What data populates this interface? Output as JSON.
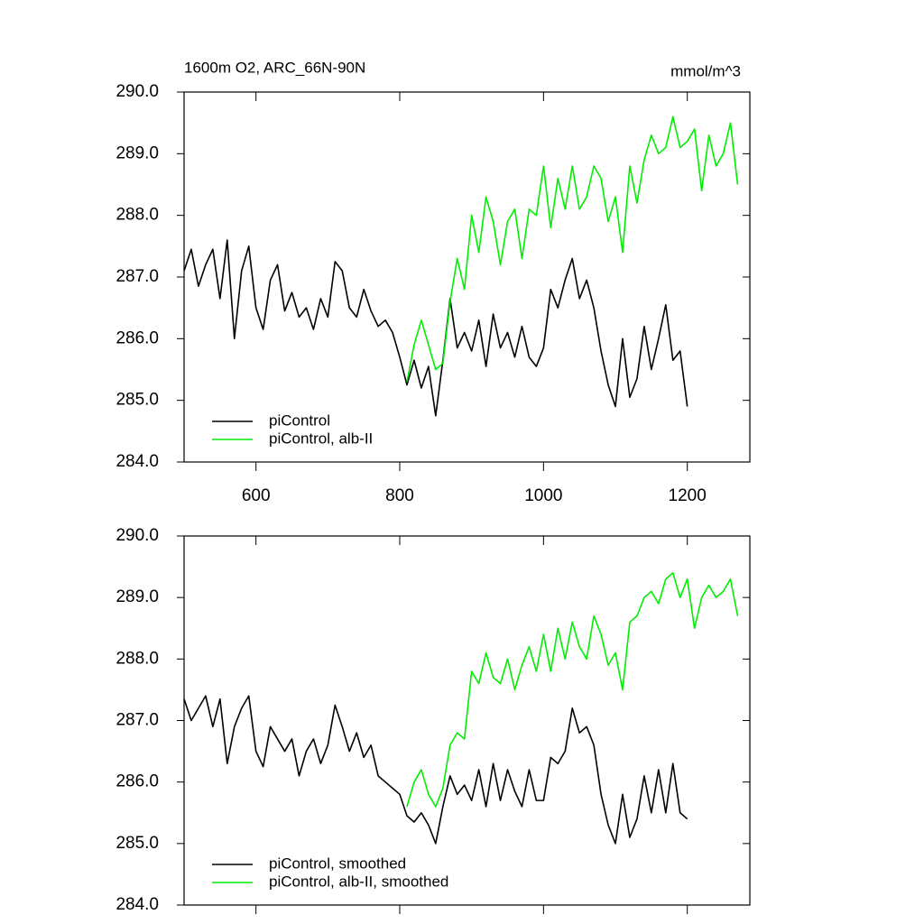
{
  "chart_data": [
    {
      "type": "line",
      "title": "1600m O2, ARC_66N-90N",
      "units": "mmol/m^3",
      "xlim": [
        500,
        1287
      ],
      "xticks": [
        600,
        800,
        1000,
        1200
      ],
      "ylim": [
        284,
        290
      ],
      "yticks": [
        {
          "value": 284,
          "label": "284.0"
        },
        {
          "value": 285,
          "label": "285.0"
        },
        {
          "value": 286,
          "label": "286.0"
        },
        {
          "value": 287,
          "label": "287.0"
        },
        {
          "value": 288,
          "label": "288.0"
        },
        {
          "value": 289,
          "label": "289.0"
        },
        {
          "value": 290,
          "label": "290.0"
        }
      ],
      "legend": "bottom-left",
      "series": [
        {
          "name": "piControl",
          "color": "#000000",
          "x": [
            500,
            510,
            520,
            530,
            540,
            550,
            560,
            570,
            580,
            590,
            600,
            610,
            620,
            630,
            640,
            650,
            660,
            670,
            680,
            690,
            700,
            710,
            720,
            730,
            740,
            750,
            760,
            770,
            780,
            790,
            800,
            810,
            820,
            830,
            840,
            850,
            860,
            870,
            880,
            890,
            900,
            910,
            920,
            930,
            940,
            950,
            960,
            970,
            980,
            990,
            1000,
            1010,
            1020,
            1030,
            1040,
            1050,
            1060,
            1070,
            1080,
            1090,
            1100,
            1110,
            1120,
            1130,
            1140,
            1150,
            1160,
            1170,
            1180,
            1190,
            1200
          ],
          "values": [
            287.1,
            287.45,
            286.85,
            287.2,
            287.45,
            286.65,
            287.6,
            286.0,
            287.1,
            287.5,
            286.5,
            286.15,
            286.95,
            287.2,
            286.45,
            286.75,
            286.35,
            286.5,
            286.15,
            286.65,
            286.35,
            287.25,
            287.1,
            286.5,
            286.35,
            286.8,
            286.45,
            286.2,
            286.3,
            286.1,
            285.7,
            285.25,
            285.65,
            285.2,
            285.55,
            284.75,
            285.65,
            286.65,
            285.85,
            286.1,
            285.8,
            286.3,
            285.55,
            286.4,
            285.85,
            286.1,
            285.7,
            286.2,
            285.7,
            285.55,
            285.85,
            286.8,
            286.5,
            286.95,
            287.3,
            286.65,
            286.95,
            286.5,
            285.8,
            285.25,
            284.9,
            286.0,
            285.05,
            285.35,
            286.2,
            285.5,
            286.0,
            286.55,
            285.65,
            285.8,
            284.9
          ]
        },
        {
          "name": "piControl, alb-II",
          "color": "#00ee00",
          "x": [
            810,
            820,
            830,
            840,
            850,
            860,
            870,
            880,
            890,
            900,
            910,
            920,
            930,
            940,
            950,
            960,
            970,
            980,
            990,
            1000,
            1010,
            1020,
            1030,
            1040,
            1050,
            1060,
            1070,
            1080,
            1090,
            1100,
            1110,
            1120,
            1130,
            1140,
            1150,
            1160,
            1170,
            1180,
            1190,
            1200,
            1210,
            1220,
            1230,
            1240,
            1250,
            1260,
            1270
          ],
          "values": [
            285.3,
            285.9,
            286.3,
            285.9,
            285.5,
            285.6,
            286.6,
            287.3,
            286.8,
            288.0,
            287.4,
            288.3,
            287.9,
            287.2,
            287.9,
            288.1,
            287.3,
            288.1,
            288.0,
            288.8,
            287.8,
            288.6,
            288.1,
            288.8,
            288.1,
            288.3,
            288.8,
            288.6,
            287.9,
            288.3,
            287.4,
            288.8,
            288.2,
            288.9,
            289.3,
            289.0,
            289.1,
            289.6,
            289.1,
            289.2,
            289.4,
            288.4,
            289.3,
            288.8,
            289.0,
            289.5,
            288.5
          ]
        }
      ]
    },
    {
      "type": "line",
      "xlim": [
        500,
        1287
      ],
      "xticks": [
        600,
        800,
        1000,
        1200
      ],
      "xticklabels": false,
      "ylim": [
        284,
        290
      ],
      "yticks": [
        {
          "value": 284,
          "label": "284.0"
        },
        {
          "value": 285,
          "label": "285.0"
        },
        {
          "value": 286,
          "label": "286.0"
        },
        {
          "value": 287,
          "label": "287.0"
        },
        {
          "value": 288,
          "label": "288.0"
        },
        {
          "value": 289,
          "label": "289.0"
        },
        {
          "value": 290,
          "label": "290.0"
        }
      ],
      "legend": "bottom-left",
      "series": [
        {
          "name": "piControl, smoothed",
          "color": "#000000",
          "x": [
            500,
            510,
            520,
            530,
            540,
            550,
            560,
            570,
            580,
            590,
            600,
            610,
            620,
            630,
            640,
            650,
            660,
            670,
            680,
            690,
            700,
            710,
            720,
            730,
            740,
            750,
            760,
            770,
            780,
            790,
            800,
            810,
            820,
            830,
            840,
            850,
            860,
            870,
            880,
            890,
            900,
            910,
            920,
            930,
            940,
            950,
            960,
            970,
            980,
            990,
            1000,
            1010,
            1020,
            1030,
            1040,
            1050,
            1060,
            1070,
            1080,
            1090,
            1100,
            1110,
            1120,
            1130,
            1140,
            1150,
            1160,
            1170,
            1180,
            1190,
            1200
          ],
          "values": [
            287.35,
            287.0,
            287.2,
            287.4,
            286.9,
            287.35,
            286.3,
            286.9,
            287.2,
            287.4,
            286.5,
            286.25,
            286.9,
            286.7,
            286.5,
            286.7,
            286.1,
            286.5,
            286.7,
            286.3,
            286.6,
            287.25,
            286.9,
            286.5,
            286.8,
            286.4,
            286.6,
            286.1,
            286.0,
            285.9,
            285.8,
            285.45,
            285.35,
            285.5,
            285.3,
            285.0,
            285.6,
            286.1,
            285.8,
            285.95,
            285.7,
            286.2,
            285.6,
            286.3,
            285.7,
            286.2,
            285.85,
            285.6,
            286.2,
            285.7,
            285.7,
            286.4,
            286.3,
            286.5,
            287.2,
            286.8,
            286.9,
            286.6,
            285.8,
            285.3,
            285.0,
            285.8,
            285.1,
            285.4,
            286.1,
            285.5,
            286.2,
            285.5,
            286.3,
            285.5,
            285.4
          ]
        },
        {
          "name": "piControl, alb-II, smoothed",
          "color": "#00ee00",
          "x": [
            810,
            820,
            830,
            840,
            850,
            860,
            870,
            880,
            890,
            900,
            910,
            920,
            930,
            940,
            950,
            960,
            970,
            980,
            990,
            1000,
            1010,
            1020,
            1030,
            1040,
            1050,
            1060,
            1070,
            1080,
            1090,
            1100,
            1110,
            1120,
            1130,
            1140,
            1150,
            1160,
            1170,
            1180,
            1190,
            1200,
            1210,
            1220,
            1230,
            1240,
            1250,
            1260,
            1270
          ],
          "values": [
            285.6,
            286.0,
            286.2,
            285.8,
            285.6,
            285.9,
            286.6,
            286.8,
            286.7,
            287.8,
            287.6,
            288.1,
            287.7,
            287.6,
            288.0,
            287.5,
            287.9,
            288.2,
            287.8,
            288.4,
            287.8,
            288.5,
            288.0,
            288.6,
            288.2,
            288.0,
            288.7,
            288.4,
            287.9,
            288.1,
            287.5,
            288.6,
            288.7,
            289.0,
            289.1,
            288.9,
            289.3,
            289.4,
            289.0,
            289.3,
            288.5,
            289.0,
            289.2,
            289.0,
            289.1,
            289.3,
            288.7
          ]
        }
      ]
    }
  ]
}
